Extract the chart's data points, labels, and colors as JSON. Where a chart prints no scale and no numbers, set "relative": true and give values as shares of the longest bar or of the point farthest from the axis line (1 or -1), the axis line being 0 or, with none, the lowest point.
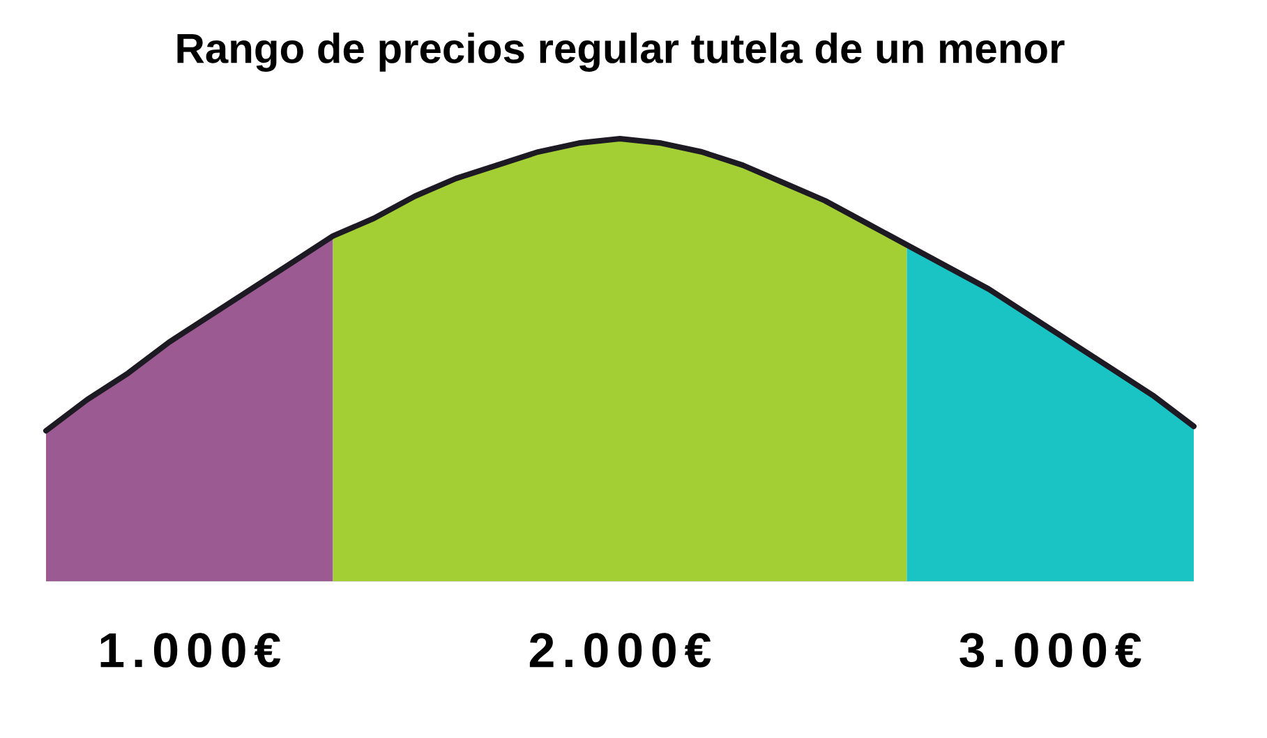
{
  "chart_data": {
    "type": "area",
    "relative": true,
    "title": "Rango de precios regular tutela de un menor",
    "categories": [
      null,
      null,
      null,
      null,
      null,
      null,
      null,
      null,
      null,
      null,
      null,
      null,
      null,
      null,
      null,
      null,
      null,
      null,
      null,
      null,
      null,
      null,
      null,
      null,
      null,
      null,
      null,
      null,
      null
    ],
    "series": [
      {
        "name": "1.000€",
        "color": "#9b5a92",
        "values": [
          0.34,
          0.41,
          0.47,
          0.54,
          0.6,
          0.66,
          0.72,
          0.78,
          null,
          null,
          null,
          null,
          null,
          null,
          null,
          null,
          null,
          null,
          null,
          null,
          null,
          null,
          null,
          null,
          null,
          null,
          null,
          null,
          null
        ]
      },
      {
        "name": "2.000€",
        "color": "#a3cf35",
        "values": [
          null,
          null,
          null,
          null,
          null,
          null,
          null,
          0.78,
          0.82,
          0.87,
          0.91,
          0.94,
          0.97,
          0.99,
          1.0,
          0.99,
          0.97,
          0.94,
          0.9,
          0.86,
          0.81,
          0.76,
          null,
          null,
          null,
          null,
          null,
          null,
          null
        ]
      },
      {
        "name": "3.000€",
        "color": "#1ac4c4",
        "values": [
          null,
          null,
          null,
          null,
          null,
          null,
          null,
          null,
          null,
          null,
          null,
          null,
          null,
          null,
          null,
          null,
          null,
          null,
          null,
          null,
          null,
          0.76,
          0.71,
          0.66,
          0.6,
          0.54,
          0.48,
          0.42,
          0.35
        ]
      },
      {
        "type": "line",
        "color": "#1e1a24",
        "values": [
          0.34,
          0.41,
          0.47,
          0.54,
          0.6,
          0.66,
          0.72,
          0.78,
          0.82,
          0.87,
          0.91,
          0.94,
          0.97,
          0.99,
          1.0,
          0.99,
          0.97,
          0.94,
          0.9,
          0.86,
          0.81,
          0.76,
          0.71,
          0.66,
          0.6,
          0.54,
          0.48,
          0.42,
          0.35
        ]
      }
    ]
  }
}
